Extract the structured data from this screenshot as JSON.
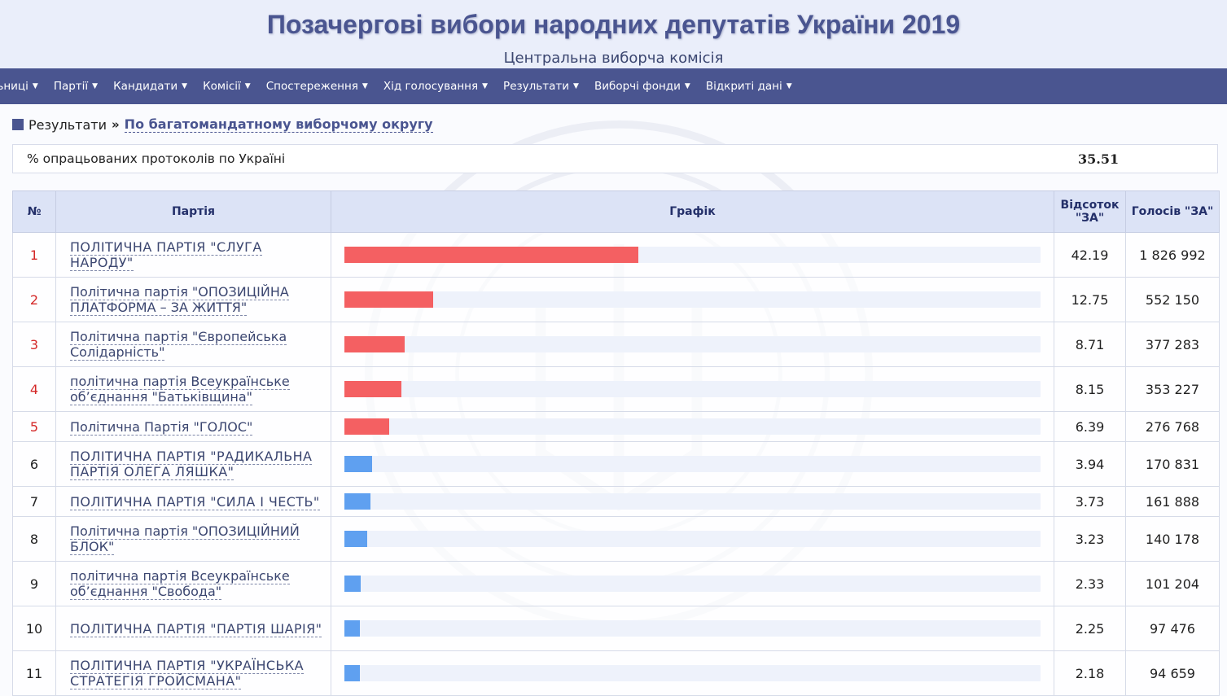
{
  "header": {
    "title": "Позачергові вибори народних депутатів України 2019",
    "subtitle": "Центральна виборча комісія"
  },
  "nav": {
    "items": [
      {
        "label": "ільниці"
      },
      {
        "label": "Партії"
      },
      {
        "label": "Кандидати"
      },
      {
        "label": "Комісії"
      },
      {
        "label": "Спостереження"
      },
      {
        "label": "Хід голосування"
      },
      {
        "label": "Результати"
      },
      {
        "label": "Виборчі фонди"
      },
      {
        "label": "Відкриті дані"
      }
    ]
  },
  "breadcrumb": {
    "root": "Результати",
    "separator": "»",
    "current": "По багатомандатному виборчому округу"
  },
  "progress": {
    "label": "% опрацьованих протоколів по Україні",
    "value": "35.51"
  },
  "table": {
    "headers": {
      "num": "№",
      "party": "Партія",
      "chart": "Графік",
      "percent": "Відсоток \"ЗА\"",
      "votes": "Голосів \"ЗА\""
    },
    "bar_max_percent": 100,
    "colors": {
      "passed": "#f46062",
      "below": "#5fa0f0",
      "track": "#eef2fb"
    },
    "rows": [
      {
        "num": "1",
        "party": "ПОЛІТИЧНА ПАРТІЯ \"СЛУГА НАРОДУ\"",
        "percent": 42.19,
        "percent_text": "42.19",
        "votes": "1 826 992",
        "passed": true,
        "upper": true
      },
      {
        "num": "2",
        "party": "Політична партія \"ОПОЗИЦІЙНА ПЛАТФОРМА – ЗА ЖИТТЯ\"",
        "percent": 12.75,
        "percent_text": "12.75",
        "votes": "552 150",
        "passed": true,
        "upper": false
      },
      {
        "num": "3",
        "party": "Політична партія \"Європейська Солідарність\"",
        "percent": 8.71,
        "percent_text": "8.71",
        "votes": "377 283",
        "passed": true,
        "upper": false
      },
      {
        "num": "4",
        "party": "політична партія Всеукраїнське об’єднання \"Батьківщина\"",
        "percent": 8.15,
        "percent_text": "8.15",
        "votes": "353 227",
        "passed": true,
        "upper": false
      },
      {
        "num": "5",
        "party": "Політична Партія \"ГОЛОС\"",
        "percent": 6.39,
        "percent_text": "6.39",
        "votes": "276 768",
        "passed": true,
        "upper": false
      },
      {
        "num": "6",
        "party": "ПОЛІТИЧНА ПАРТІЯ \"РАДИКАЛЬНА ПАРТІЯ ОЛЕГА ЛЯШКА\"",
        "percent": 3.94,
        "percent_text": "3.94",
        "votes": "170 831",
        "passed": false,
        "upper": true
      },
      {
        "num": "7",
        "party": "ПОЛІТИЧНА ПАРТІЯ \"СИЛА І ЧЕСТЬ\"",
        "percent": 3.73,
        "percent_text": "3.73",
        "votes": "161 888",
        "passed": false,
        "upper": true
      },
      {
        "num": "8",
        "party": "Політична партія \"ОПОЗИЦІЙНИЙ БЛОК\"",
        "percent": 3.23,
        "percent_text": "3.23",
        "votes": "140 178",
        "passed": false,
        "upper": false
      },
      {
        "num": "9",
        "party": "політична партія Всеукраїнське об’єднання \"Свобода\"",
        "percent": 2.33,
        "percent_text": "2.33",
        "votes": "101 204",
        "passed": false,
        "upper": false
      },
      {
        "num": "10",
        "party": "ПОЛІТИЧНА ПАРТІЯ \"ПАРТІЯ ШАРІЯ\"",
        "percent": 2.25,
        "percent_text": "2.25",
        "votes": "97 476",
        "passed": false,
        "upper": true
      },
      {
        "num": "11",
        "party": "ПОЛІТИЧНА ПАРТІЯ \"УКРАЇНСЬКА СТРАТЕГІЯ ГРОЙСМАНА\"",
        "percent": 2.18,
        "percent_text": "2.18",
        "votes": "94 659",
        "passed": false,
        "upper": true
      }
    ]
  }
}
